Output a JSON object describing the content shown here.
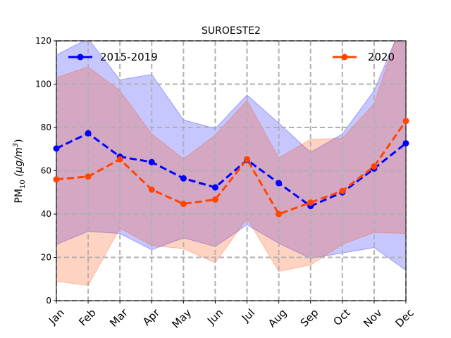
{
  "chart_data": {
    "type": "line",
    "title": "SUROESTE2",
    "ylabel": "PM10 (µg/m³)",
    "ylabel_main": "PM",
    "ylabel_sub": "10",
    "ylabel_unit": " (µg/m",
    "ylabel_sup": "3",
    "ylabel_close": ")",
    "xlabel": "",
    "categories": [
      "Jan",
      "Feb",
      "Mar",
      "Apr",
      "May",
      "Jun",
      "Jul",
      "Aug",
      "Sep",
      "Oct",
      "Nov",
      "Dec"
    ],
    "ylim": [
      0,
      120
    ],
    "yticks": [
      0,
      20,
      40,
      60,
      80,
      100,
      120
    ],
    "grid": true,
    "legend": [
      "upper-left",
      "upper-right"
    ],
    "series": [
      {
        "name": "2015-2019",
        "color": "#0000ff",
        "values": [
          70.3,
          77.3,
          66.5,
          64.0,
          56.5,
          52.3,
          65.0,
          54.3,
          43.7,
          50.0,
          61.0,
          72.7
        ],
        "band_upper": [
          113.5,
          121.0,
          102.0,
          104.5,
          83.5,
          79.5,
          95.0,
          82.0,
          68.5,
          77.0,
          97.0,
          132.0
        ],
        "band_lower": [
          26.0,
          32.0,
          31.0,
          23.5,
          29.0,
          25.0,
          35.0,
          26.5,
          19.5,
          22.0,
          24.5,
          14.0
        ]
      },
      {
        "name": "2020",
        "color": "#ff4500",
        "values": [
          56.0,
          57.3,
          65.3,
          51.3,
          44.7,
          46.7,
          65.3,
          40.0,
          45.3,
          50.7,
          62.0,
          83.0
        ],
        "band_upper": [
          103.0,
          108.0,
          97.0,
          77.0,
          65.5,
          76.5,
          92.5,
          66.0,
          74.5,
          75.0,
          91.0,
          135.0
        ],
        "band_lower": [
          9.0,
          7.0,
          33.5,
          25.5,
          24.0,
          17.5,
          38.0,
          13.5,
          16.5,
          26.0,
          31.5,
          31.0
        ]
      }
    ]
  }
}
